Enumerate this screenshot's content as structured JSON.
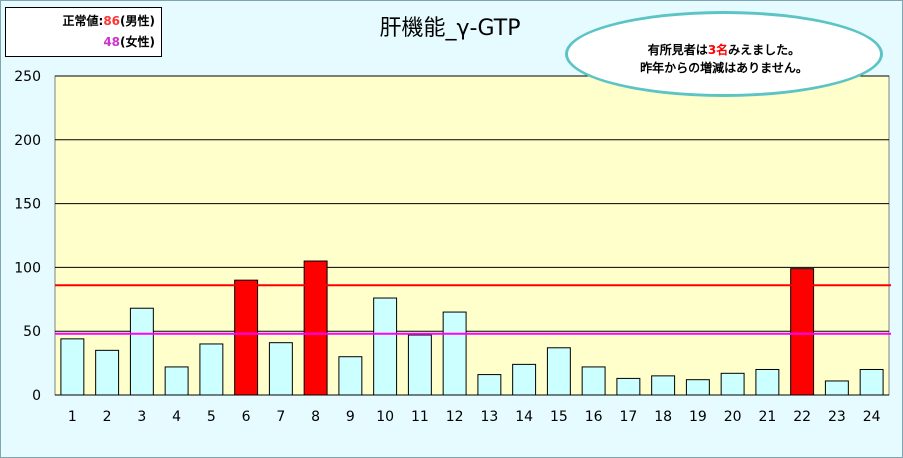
{
  "legend": {
    "male_prefix": "正常値:",
    "male_value": "86",
    "male_suffix": "(男性)",
    "female_value": "48",
    "female_suffix": "(女性)",
    "male_color": "#ff3333",
    "female_color": "#cc33cc"
  },
  "callout": {
    "line1_prefix": "有所見者は",
    "line1_count": "3名",
    "line1_suffix": "みえました。",
    "line2": "昨年からの増減はありません。"
  },
  "colors": {
    "plot_bg": "#ffffcc",
    "normal_bar": "#ccffff",
    "abnormal_bar": "#ff0000",
    "male_line": "#ff0000",
    "female_line": "#ff00ff"
  },
  "chart_data": {
    "type": "bar",
    "title": "肝機能_γ-GTP",
    "categories": [
      "1",
      "2",
      "3",
      "4",
      "5",
      "6",
      "7",
      "8",
      "9",
      "10",
      "11",
      "12",
      "13",
      "14",
      "15",
      "16",
      "17",
      "18",
      "19",
      "20",
      "21",
      "22",
      "23",
      "24"
    ],
    "values": [
      44,
      35,
      68,
      22,
      40,
      90,
      41,
      105,
      30,
      76,
      47,
      65,
      16,
      24,
      37,
      22,
      13,
      15,
      12,
      17,
      20,
      99,
      11,
      20
    ],
    "abnormal": [
      false,
      false,
      false,
      false,
      false,
      true,
      false,
      true,
      false,
      false,
      false,
      false,
      false,
      false,
      false,
      false,
      false,
      false,
      false,
      false,
      false,
      true,
      false,
      false
    ],
    "ylim": [
      0,
      250
    ],
    "yticks": [
      "0",
      "50",
      "100",
      "150",
      "200",
      "250"
    ],
    "reference_lines": [
      {
        "label": "男性",
        "value": 86
      },
      {
        "label": "女性",
        "value": 48
      }
    ],
    "grid": true
  }
}
